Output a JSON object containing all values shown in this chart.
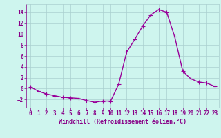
{
  "x": [
    0,
    1,
    2,
    3,
    4,
    5,
    6,
    7,
    8,
    9,
    10,
    11,
    12,
    13,
    14,
    15,
    16,
    17,
    18,
    19,
    20,
    21,
    22,
    23
  ],
  "y": [
    0.3,
    -0.5,
    -1.0,
    -1.3,
    -1.6,
    -1.7,
    -1.8,
    -2.2,
    -2.5,
    -2.3,
    -2.3,
    0.8,
    6.7,
    9.0,
    11.5,
    13.5,
    14.5,
    14.0,
    9.5,
    3.2,
    1.8,
    1.2,
    1.0,
    0.4
  ],
  "line_color": "#990099",
  "marker": "+",
  "marker_size": 4,
  "linewidth": 1.0,
  "bg_color": "#cef5ee",
  "grid_color": "#aacfcf",
  "tick_color": "#880088",
  "label_color": "#880088",
  "xlabel": "Windchill (Refroidissement éolien,°C)",
  "xlim": [
    -0.5,
    23.5
  ],
  "ylim": [
    -3.5,
    15.5
  ],
  "yticks": [
    -2,
    0,
    2,
    4,
    6,
    8,
    10,
    12,
    14
  ],
  "xticks": [
    0,
    1,
    2,
    3,
    4,
    5,
    6,
    7,
    8,
    9,
    10,
    11,
    12,
    13,
    14,
    15,
    16,
    17,
    18,
    19,
    20,
    21,
    22,
    23
  ],
  "tick_fontsize": 5.5,
  "xlabel_fontsize": 6.0
}
